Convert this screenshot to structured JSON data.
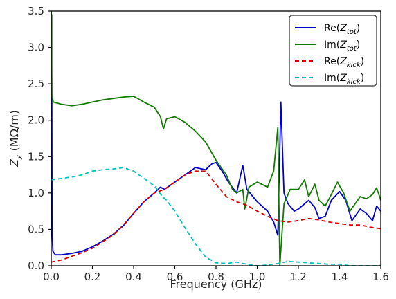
{
  "chart_data": {
    "type": "line",
    "xlabel": "Frequency (GHz)",
    "ylabel": "Z_y (MΩ/m)",
    "xlim": [
      0.0,
      1.6
    ],
    "ylim": [
      0.0,
      3.5
    ],
    "x_ticks": [
      0.0,
      0.2,
      0.4,
      0.6,
      0.8,
      1.0,
      1.2,
      1.4,
      1.6
    ],
    "x_tick_labels": [
      "0.0",
      "0.2",
      "0.4",
      "0.6",
      "0.8",
      "1.0",
      "1.2",
      "1.4",
      "1.6"
    ],
    "y_ticks": [
      0.0,
      0.5,
      1.0,
      1.5,
      2.0,
      2.5,
      3.0,
      3.5
    ],
    "y_tick_labels": [
      "0.0",
      "0.5",
      "1.0",
      "1.5",
      "2.0",
      "2.5",
      "3.0",
      "3.5"
    ],
    "grid": false,
    "legend_position": "top-right",
    "series": [
      {
        "name": "Re(Z_tot)",
        "color": "#0000cc",
        "dash": "solid",
        "points": [
          [
            0.0,
            0.95
          ],
          [
            0.002,
            3.45
          ],
          [
            0.004,
            0.45
          ],
          [
            0.008,
            0.2
          ],
          [
            0.02,
            0.15
          ],
          [
            0.05,
            0.15
          ],
          [
            0.1,
            0.17
          ],
          [
            0.15,
            0.2
          ],
          [
            0.2,
            0.26
          ],
          [
            0.25,
            0.34
          ],
          [
            0.3,
            0.43
          ],
          [
            0.35,
            0.55
          ],
          [
            0.4,
            0.72
          ],
          [
            0.45,
            0.88
          ],
          [
            0.5,
            1.0
          ],
          [
            0.53,
            1.08
          ],
          [
            0.55,
            1.05
          ],
          [
            0.6,
            1.15
          ],
          [
            0.65,
            1.25
          ],
          [
            0.7,
            1.35
          ],
          [
            0.75,
            1.32
          ],
          [
            0.78,
            1.4
          ],
          [
            0.8,
            1.42
          ],
          [
            0.83,
            1.3
          ],
          [
            0.86,
            1.15
          ],
          [
            0.9,
            1.0
          ],
          [
            0.93,
            1.38
          ],
          [
            0.95,
            1.05
          ],
          [
            1.0,
            0.88
          ],
          [
            1.05,
            0.75
          ],
          [
            1.08,
            0.6
          ],
          [
            1.1,
            0.42
          ],
          [
            1.115,
            2.25
          ],
          [
            1.13,
            1.0
          ],
          [
            1.15,
            0.85
          ],
          [
            1.18,
            0.75
          ],
          [
            1.2,
            0.78
          ],
          [
            1.23,
            0.85
          ],
          [
            1.25,
            0.9
          ],
          [
            1.28,
            0.8
          ],
          [
            1.3,
            0.65
          ],
          [
            1.33,
            0.68
          ],
          [
            1.36,
            0.9
          ],
          [
            1.4,
            1.02
          ],
          [
            1.43,
            0.9
          ],
          [
            1.46,
            0.62
          ],
          [
            1.5,
            0.78
          ],
          [
            1.53,
            0.72
          ],
          [
            1.56,
            0.62
          ],
          [
            1.58,
            0.82
          ],
          [
            1.6,
            0.75
          ]
        ]
      },
      {
        "name": "Im(Z_tot)",
        "color": "#117a00",
        "dash": "solid",
        "points": [
          [
            0.0,
            3.5
          ],
          [
            0.003,
            2.35
          ],
          [
            0.01,
            2.25
          ],
          [
            0.05,
            2.22
          ],
          [
            0.1,
            2.2
          ],
          [
            0.15,
            2.22
          ],
          [
            0.2,
            2.25
          ],
          [
            0.25,
            2.28
          ],
          [
            0.3,
            2.3
          ],
          [
            0.35,
            2.32
          ],
          [
            0.4,
            2.33
          ],
          [
            0.45,
            2.25
          ],
          [
            0.5,
            2.18
          ],
          [
            0.53,
            2.05
          ],
          [
            0.545,
            1.88
          ],
          [
            0.56,
            2.02
          ],
          [
            0.6,
            2.05
          ],
          [
            0.65,
            1.97
          ],
          [
            0.7,
            1.85
          ],
          [
            0.75,
            1.7
          ],
          [
            0.8,
            1.45
          ],
          [
            0.85,
            1.25
          ],
          [
            0.88,
            1.05
          ],
          [
            0.9,
            1.0
          ],
          [
            0.93,
            1.05
          ],
          [
            0.94,
            0.78
          ],
          [
            0.96,
            1.08
          ],
          [
            1.0,
            1.15
          ],
          [
            1.05,
            1.08
          ],
          [
            1.08,
            1.3
          ],
          [
            1.1,
            1.9
          ],
          [
            1.11,
            0.0
          ],
          [
            1.13,
            0.85
          ],
          [
            1.16,
            1.05
          ],
          [
            1.2,
            1.05
          ],
          [
            1.23,
            1.18
          ],
          [
            1.25,
            0.95
          ],
          [
            1.28,
            1.12
          ],
          [
            1.3,
            0.9
          ],
          [
            1.33,
            0.82
          ],
          [
            1.36,
            0.98
          ],
          [
            1.39,
            1.15
          ],
          [
            1.42,
            1.0
          ],
          [
            1.45,
            0.75
          ],
          [
            1.5,
            0.95
          ],
          [
            1.53,
            0.92
          ],
          [
            1.56,
            0.98
          ],
          [
            1.58,
            1.07
          ],
          [
            1.6,
            0.9
          ]
        ]
      },
      {
        "name": "Re(Z_kick)",
        "color": "#dd0000",
        "dash": "6,4",
        "points": [
          [
            0.0,
            0.05
          ],
          [
            0.05,
            0.08
          ],
          [
            0.1,
            0.13
          ],
          [
            0.15,
            0.18
          ],
          [
            0.2,
            0.24
          ],
          [
            0.25,
            0.33
          ],
          [
            0.3,
            0.42
          ],
          [
            0.35,
            0.56
          ],
          [
            0.4,
            0.72
          ],
          [
            0.45,
            0.88
          ],
          [
            0.5,
            1.0
          ],
          [
            0.55,
            1.05
          ],
          [
            0.6,
            1.15
          ],
          [
            0.65,
            1.25
          ],
          [
            0.7,
            1.3
          ],
          [
            0.75,
            1.3
          ],
          [
            0.8,
            1.12
          ],
          [
            0.85,
            0.95
          ],
          [
            0.9,
            0.88
          ],
          [
            0.95,
            0.83
          ],
          [
            1.0,
            0.75
          ],
          [
            1.05,
            0.68
          ],
          [
            1.1,
            0.62
          ],
          [
            1.15,
            0.6
          ],
          [
            1.2,
            0.62
          ],
          [
            1.25,
            0.65
          ],
          [
            1.3,
            0.63
          ],
          [
            1.35,
            0.6
          ],
          [
            1.4,
            0.58
          ],
          [
            1.45,
            0.56
          ],
          [
            1.5,
            0.56
          ],
          [
            1.55,
            0.53
          ],
          [
            1.6,
            0.51
          ]
        ]
      },
      {
        "name": "Im(Z_kick)",
        "color": "#00bfbf",
        "dash": "6,4",
        "points": [
          [
            0.0,
            1.18
          ],
          [
            0.05,
            1.2
          ],
          [
            0.1,
            1.22
          ],
          [
            0.15,
            1.25
          ],
          [
            0.2,
            1.3
          ],
          [
            0.25,
            1.32
          ],
          [
            0.3,
            1.33
          ],
          [
            0.35,
            1.35
          ],
          [
            0.4,
            1.3
          ],
          [
            0.45,
            1.2
          ],
          [
            0.5,
            1.1
          ],
          [
            0.54,
            0.95
          ],
          [
            0.56,
            0.9
          ],
          [
            0.6,
            0.75
          ],
          [
            0.65,
            0.52
          ],
          [
            0.7,
            0.3
          ],
          [
            0.75,
            0.12
          ],
          [
            0.8,
            0.04
          ],
          [
            0.85,
            0.03
          ],
          [
            0.9,
            0.05
          ],
          [
            0.95,
            0.02
          ],
          [
            1.0,
            0.0
          ],
          [
            1.05,
            0.01
          ],
          [
            1.1,
            0.03
          ],
          [
            1.15,
            0.06
          ],
          [
            1.2,
            0.05
          ],
          [
            1.25,
            0.04
          ],
          [
            1.3,
            0.03
          ],
          [
            1.35,
            0.02
          ],
          [
            1.4,
            0.02
          ],
          [
            1.45,
            0.0
          ],
          [
            1.5,
            0.0
          ],
          [
            1.55,
            0.0
          ],
          [
            1.6,
            0.0
          ]
        ]
      }
    ]
  }
}
